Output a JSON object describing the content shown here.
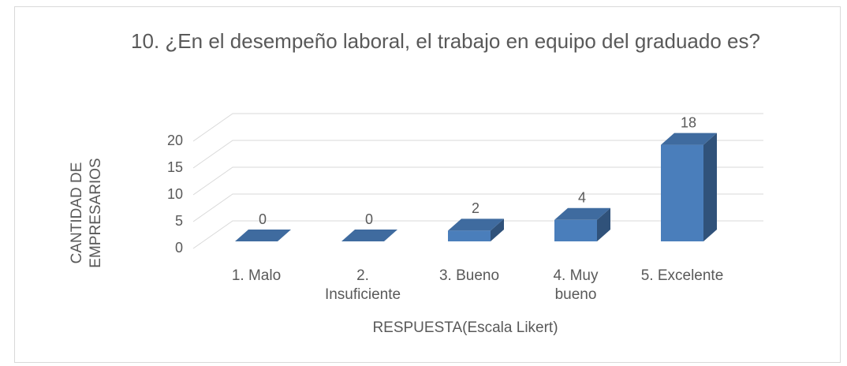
{
  "chart_data": {
    "type": "bar",
    "title": "10. ¿En el desempeño laboral, el trabajo en equipo del graduado es?",
    "x_label": "RESPUESTA(Escala Likert)",
    "y_label": "CANTIDAD DE EMPRESARIOS",
    "categories": [
      "1. Malo",
      "2. Insuficiente",
      "3. Bueno",
      "4. Muy bueno",
      "5. Excelente"
    ],
    "values": [
      0,
      0,
      2,
      4,
      18
    ],
    "color": "#4a7ebb",
    "ylim": [
      0,
      20
    ],
    "yticks": [
      0,
      5,
      10,
      15,
      20
    ],
    "grid": true
  }
}
